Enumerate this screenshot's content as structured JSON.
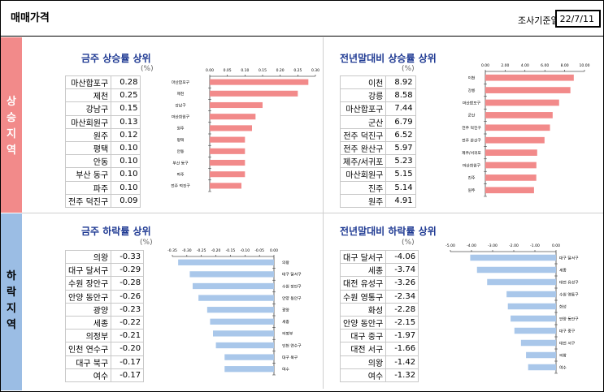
{
  "header": {
    "title": "매매가격",
    "date_label": "조사기준일",
    "date_value": "22/7/11"
  },
  "bands": {
    "up": "상승지역",
    "down": "하락지역"
  },
  "unit": "(%)",
  "chart_data": [
    {
      "type": "bar",
      "title": "금주 상승률 상위",
      "categories": [
        "마산합포구",
        "제천",
        "강남구",
        "마산회원구",
        "원주",
        "평택",
        "안동",
        "부산 동구",
        "파주",
        "전주 덕진구"
      ],
      "values": [
        0.28,
        0.25,
        0.15,
        0.13,
        0.12,
        0.1,
        0.1,
        0.1,
        0.1,
        0.09
      ],
      "xlim": [
        0,
        0.3
      ],
      "ticks": [
        "0.00",
        "0.05",
        "0.10",
        "0.15",
        "0.20",
        "0.25",
        "0.30"
      ],
      "color": "#f28a8a"
    },
    {
      "type": "bar",
      "title": "전년말대비 상승률 상위",
      "categories": [
        "이천",
        "강릉",
        "마산합포구",
        "군산",
        "전주 덕진구",
        "전주 완산구",
        "제주/서귀포",
        "마산회원구",
        "진주",
        "원주"
      ],
      "values": [
        8.92,
        8.58,
        7.44,
        6.79,
        6.52,
        5.97,
        5.23,
        5.15,
        5.14,
        4.91
      ],
      "xlim": [
        0,
        10
      ],
      "ticks": [
        "0.00",
        "2.00",
        "4.00",
        "6.00",
        "8.00",
        "10.00"
      ],
      "color": "#f28a8a"
    },
    {
      "type": "bar",
      "title": "금주 하락률 상위",
      "categories": [
        "의왕",
        "대구 달서구",
        "수원 장안구",
        "안양 동안구",
        "광양",
        "세종",
        "의정부",
        "인천 연수구",
        "대구 북구",
        "여수"
      ],
      "values": [
        -0.33,
        -0.29,
        -0.28,
        -0.26,
        -0.23,
        -0.22,
        -0.21,
        -0.2,
        -0.17,
        -0.17
      ],
      "xlim": [
        -0.35,
        0
      ],
      "ticks": [
        "-0.35",
        "-0.30",
        "-0.25",
        "-0.20",
        "-0.15",
        "-0.10",
        "-0.05",
        "0.00"
      ],
      "color": "#a9c7ea"
    },
    {
      "type": "bar",
      "title": "전년말대비 하락률 상위",
      "categories": [
        "대구 달서구",
        "세종",
        "대전 유성구",
        "수원 영통구",
        "화성",
        "안양 동안구",
        "대구 중구",
        "대전 서구",
        "의왕",
        "여수"
      ],
      "values": [
        -4.06,
        -3.74,
        -3.26,
        -2.34,
        -2.28,
        -2.15,
        -1.97,
        -1.66,
        -1.42,
        -1.32
      ],
      "xlim": [
        -5,
        0
      ],
      "ticks": [
        "-5.00",
        "-4.00",
        "-3.00",
        "-2.00",
        "-1.00",
        "0.00"
      ],
      "color": "#a9c7ea"
    }
  ]
}
